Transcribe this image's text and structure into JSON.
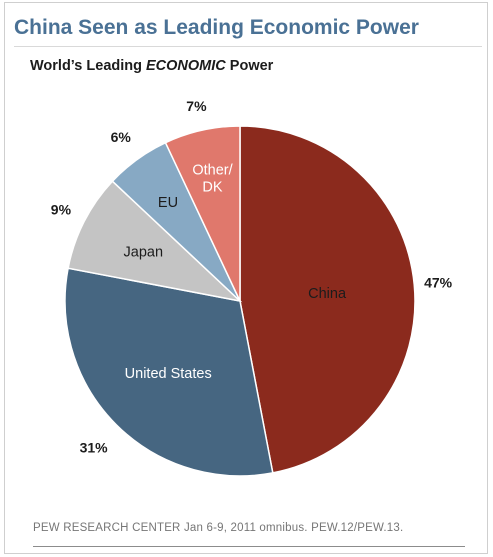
{
  "header": {
    "title": "China Seen as Leading Economic Power",
    "subtitle_pre": "World’s Leading ",
    "subtitle_em": "ECONOMIC",
    "subtitle_post": " Power"
  },
  "chart_data": {
    "type": "pie",
    "title": "World’s Leading ECONOMIC Power",
    "slices": [
      {
        "label": "China",
        "value": 47,
        "value_label": "47%",
        "color": "#8b2a1d",
        "label_color": "#1c1c1c"
      },
      {
        "label": "United States",
        "value": 31,
        "value_label": "31%",
        "color": "#466681",
        "label_color": "#ffffff"
      },
      {
        "label": "Japan",
        "value": 9,
        "value_label": "9%",
        "color": "#c4c4c4",
        "label_color": "#1c1c1c"
      },
      {
        "label": "EU",
        "value": 6,
        "value_label": "6%",
        "color": "#87a9c4",
        "label_color": "#1c1c1c"
      },
      {
        "label": "Other/\nDK",
        "value": 7,
        "value_label": "7%",
        "color": "#e0786c",
        "label_color": "#ffffff"
      }
    ]
  },
  "footer": {
    "source": "PEW RESEARCH  CENTER Jan 6-9, 2011 omnibus. PEW.12/PEW.13."
  }
}
